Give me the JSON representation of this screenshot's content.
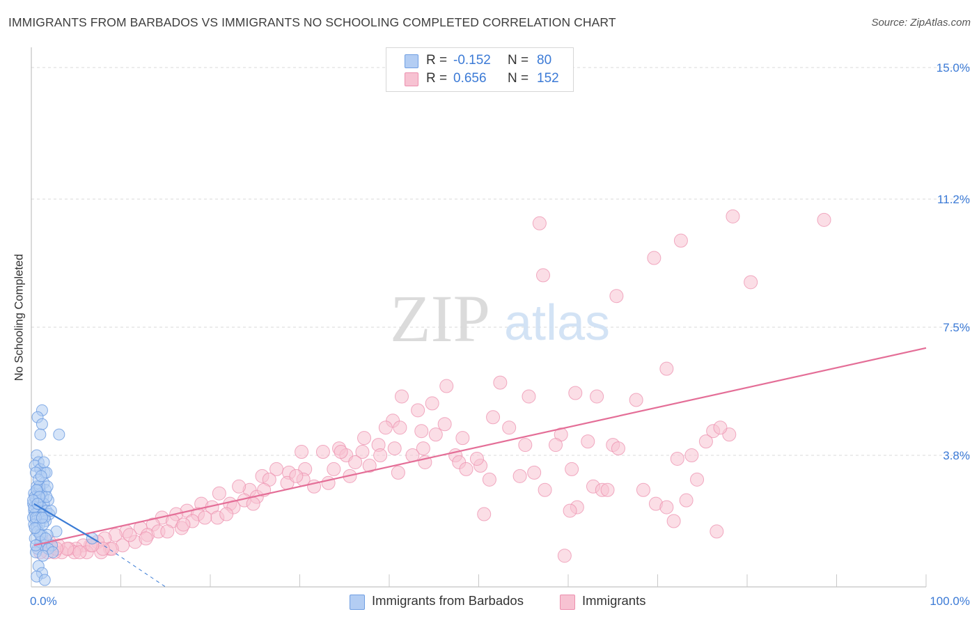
{
  "title": "IMMIGRANTS FROM BARBADOS VS IMMIGRANTS NO SCHOOLING COMPLETED CORRELATION CHART",
  "source": "Source: ZipAtlas.com",
  "watermark": {
    "zip": "ZIP",
    "atlas": "atlas"
  },
  "colors": {
    "blue_fill": "#b3cdf3",
    "blue_stroke": "#6f9ee2",
    "blue_line": "#3a7bd5",
    "pink_fill": "#f7c2d2",
    "pink_stroke": "#ec8fae",
    "pink_line": "#e46e97",
    "tick_label": "#3b7ad6",
    "grid": "#d9d9d9"
  },
  "legend": {
    "rows": [
      {
        "series": "blue",
        "r_label": "R =",
        "r_value": "-0.152",
        "n_label": "N =",
        "n_value": "80"
      },
      {
        "series": "pink",
        "r_label": "R =",
        "r_value": "0.656",
        "n_label": "N =",
        "n_value": "152"
      }
    ]
  },
  "chart_data": {
    "type": "scatter",
    "title": "IMMIGRANTS FROM BARBADOS VS IMMIGRANTS NO SCHOOLING COMPLETED CORRELATION CHART",
    "xlabel": "",
    "ylabel": "No Schooling Completed",
    "xlim": [
      0,
      100
    ],
    "ylim": [
      0,
      15.0
    ],
    "x_tick_labels": [
      "0.0%",
      "100.0%"
    ],
    "y_ticks": [
      3.8,
      7.5,
      11.2,
      15.0
    ],
    "y_tick_labels": [
      "3.8%",
      "7.5%",
      "11.2%",
      "15.0%"
    ],
    "grid": true,
    "legend_position": "top-center",
    "series": [
      {
        "name": "Immigrants from Barbados",
        "color": "blue",
        "R": -0.152,
        "N": 80,
        "trend": {
          "x": [
            0.3,
            7.5
          ],
          "y": [
            2.4,
            1.3
          ]
        },
        "trend_extension": {
          "x": [
            7.5,
            15.0
          ],
          "y": [
            1.3,
            0.0
          ]
        },
        "points": [
          [
            1.2,
            5.1
          ],
          [
            0.7,
            4.9
          ],
          [
            1.2,
            4.7
          ],
          [
            3.1,
            4.4
          ],
          [
            1.0,
            4.4
          ],
          [
            0.6,
            3.8
          ],
          [
            0.8,
            3.6
          ],
          [
            0.4,
            3.5
          ],
          [
            1.0,
            3.4
          ],
          [
            1.5,
            3.3
          ],
          [
            1.7,
            3.3
          ],
          [
            0.5,
            3.3
          ],
          [
            1.4,
            3.0
          ],
          [
            0.6,
            2.9
          ],
          [
            0.9,
            2.8
          ],
          [
            1.6,
            2.8
          ],
          [
            0.3,
            2.7
          ],
          [
            0.8,
            2.6
          ],
          [
            1.3,
            2.6
          ],
          [
            0.5,
            2.5
          ],
          [
            1.9,
            2.5
          ],
          [
            0.2,
            2.4
          ],
          [
            0.9,
            2.4
          ],
          [
            1.4,
            2.4
          ],
          [
            0.6,
            2.3
          ],
          [
            1.1,
            2.3
          ],
          [
            0.3,
            2.2
          ],
          [
            0.8,
            2.2
          ],
          [
            1.7,
            2.2
          ],
          [
            0.4,
            2.1
          ],
          [
            1.3,
            2.1
          ],
          [
            0.2,
            2.0
          ],
          [
            0.7,
            2.0
          ],
          [
            1.0,
            2.0
          ],
          [
            2.0,
            2.1
          ],
          [
            0.5,
            1.9
          ],
          [
            1.6,
            1.9
          ],
          [
            0.3,
            1.8
          ],
          [
            0.9,
            1.8
          ],
          [
            0.6,
            1.7
          ],
          [
            2.8,
            1.6
          ],
          [
            1.2,
            1.5
          ],
          [
            1.8,
            1.5
          ],
          [
            0.4,
            1.4
          ],
          [
            1.0,
            1.3
          ],
          [
            6.8,
            1.4
          ],
          [
            1.5,
            1.2
          ],
          [
            2.3,
            1.2
          ],
          [
            0.7,
            1.1
          ],
          [
            1.9,
            1.1
          ],
          [
            0.5,
            1.0
          ],
          [
            2.4,
            1.0
          ],
          [
            1.3,
            0.9
          ],
          [
            0.8,
            0.6
          ],
          [
            1.2,
            0.4
          ],
          [
            0.6,
            0.3
          ],
          [
            1.5,
            0.2
          ],
          [
            0.4,
            2.6
          ],
          [
            1.1,
            2.7
          ],
          [
            0.9,
            2.9
          ],
          [
            1.7,
            2.6
          ],
          [
            0.3,
            2.3
          ],
          [
            1.5,
            2.0
          ],
          [
            0.7,
            1.6
          ],
          [
            1.4,
            3.6
          ],
          [
            0.8,
            3.1
          ],
          [
            1.8,
            2.9
          ],
          [
            0.5,
            2.0
          ],
          [
            1.0,
            1.5
          ],
          [
            0.6,
            2.8
          ],
          [
            1.3,
            1.8
          ],
          [
            0.4,
            1.7
          ],
          [
            2.2,
            2.2
          ],
          [
            0.9,
            2.6
          ],
          [
            1.6,
            1.4
          ],
          [
            0.2,
            2.5
          ],
          [
            1.1,
            3.2
          ],
          [
            0.7,
            2.4
          ],
          [
            1.2,
            2.0
          ],
          [
            0.5,
            1.2
          ]
        ]
      },
      {
        "name": "Immigrants",
        "color": "pink",
        "R": 0.656,
        "N": 152,
        "trend": {
          "x": [
            0.3,
            100
          ],
          "y": [
            1.2,
            6.9
          ]
        },
        "points": [
          [
            78.4,
            10.7
          ],
          [
            88.6,
            10.6
          ],
          [
            56.8,
            10.5
          ],
          [
            72.6,
            10.0
          ],
          [
            69.6,
            9.5
          ],
          [
            57.2,
            9.0
          ],
          [
            80.4,
            8.8
          ],
          [
            65.4,
            8.4
          ],
          [
            71.0,
            6.3
          ],
          [
            52.4,
            5.9
          ],
          [
            46.4,
            5.8
          ],
          [
            41.4,
            5.5
          ],
          [
            60.8,
            5.6
          ],
          [
            63.2,
            5.5
          ],
          [
            55.6,
            5.5
          ],
          [
            67.6,
            5.4
          ],
          [
            44.8,
            5.3
          ],
          [
            43.2,
            5.1
          ],
          [
            40.4,
            4.8
          ],
          [
            51.6,
            4.9
          ],
          [
            46.2,
            4.7
          ],
          [
            39.6,
            4.6
          ],
          [
            41.2,
            4.6
          ],
          [
            43.6,
            4.5
          ],
          [
            76.2,
            4.5
          ],
          [
            78.0,
            4.4
          ],
          [
            59.2,
            4.4
          ],
          [
            37.2,
            4.3
          ],
          [
            48.2,
            4.3
          ],
          [
            62.2,
            4.2
          ],
          [
            65.0,
            4.1
          ],
          [
            55.2,
            4.1
          ],
          [
            58.6,
            4.1
          ],
          [
            43.8,
            4.0
          ],
          [
            40.6,
            4.0
          ],
          [
            38.8,
            4.1
          ],
          [
            34.4,
            4.0
          ],
          [
            37.0,
            3.9
          ],
          [
            30.2,
            3.9
          ],
          [
            32.6,
            3.9
          ],
          [
            35.2,
            3.8
          ],
          [
            39.0,
            3.8
          ],
          [
            42.6,
            3.8
          ],
          [
            47.4,
            3.8
          ],
          [
            65.6,
            4.0
          ],
          [
            72.2,
            3.7
          ],
          [
            73.8,
            3.8
          ],
          [
            47.8,
            3.6
          ],
          [
            50.2,
            3.5
          ],
          [
            37.8,
            3.5
          ],
          [
            33.8,
            3.4
          ],
          [
            30.6,
            3.4
          ],
          [
            27.4,
            3.4
          ],
          [
            28.8,
            3.3
          ],
          [
            25.8,
            3.2
          ],
          [
            35.6,
            3.2
          ],
          [
            41.0,
            3.3
          ],
          [
            60.4,
            3.4
          ],
          [
            51.2,
            3.1
          ],
          [
            54.6,
            3.2
          ],
          [
            56.2,
            3.3
          ],
          [
            48.6,
            3.4
          ],
          [
            28.6,
            3.0
          ],
          [
            26.6,
            3.1
          ],
          [
            30.4,
            3.1
          ],
          [
            31.6,
            2.9
          ],
          [
            24.4,
            2.8
          ],
          [
            21.0,
            2.7
          ],
          [
            23.2,
            2.9
          ],
          [
            62.8,
            2.9
          ],
          [
            74.4,
            3.1
          ],
          [
            68.4,
            2.8
          ],
          [
            57.4,
            2.8
          ],
          [
            63.8,
            2.8
          ],
          [
            64.4,
            2.8
          ],
          [
            25.2,
            2.6
          ],
          [
            23.8,
            2.5
          ],
          [
            22.2,
            2.4
          ],
          [
            19.0,
            2.4
          ],
          [
            20.2,
            2.3
          ],
          [
            17.4,
            2.2
          ],
          [
            16.2,
            2.1
          ],
          [
            14.6,
            2.0
          ],
          [
            69.8,
            2.4
          ],
          [
            71.0,
            2.3
          ],
          [
            73.2,
            2.5
          ],
          [
            61.0,
            2.3
          ],
          [
            60.2,
            2.2
          ],
          [
            18.6,
            2.1
          ],
          [
            15.8,
            1.9
          ],
          [
            13.6,
            1.8
          ],
          [
            12.2,
            1.7
          ],
          [
            10.6,
            1.6
          ],
          [
            9.4,
            1.5
          ],
          [
            8.2,
            1.4
          ],
          [
            7.4,
            1.3
          ],
          [
            6.6,
            1.2
          ],
          [
            5.8,
            1.2
          ],
          [
            5.0,
            1.1
          ],
          [
            4.2,
            1.1
          ],
          [
            3.4,
            1.0
          ],
          [
            2.6,
            1.0
          ],
          [
            1.8,
            1.0
          ],
          [
            1.0,
            1.0
          ],
          [
            8.8,
            1.1
          ],
          [
            6.2,
            1.0
          ],
          [
            4.8,
            1.0
          ],
          [
            7.8,
            1.0
          ],
          [
            11.6,
            1.3
          ],
          [
            13.0,
            1.5
          ],
          [
            14.2,
            1.6
          ],
          [
            15.2,
            1.6
          ],
          [
            16.8,
            1.7
          ],
          [
            10.2,
            1.2
          ],
          [
            9.0,
            1.1
          ],
          [
            12.8,
            1.4
          ],
          [
            11.0,
            1.5
          ],
          [
            20.8,
            2.0
          ],
          [
            18.0,
            1.9
          ],
          [
            76.6,
            1.6
          ],
          [
            71.8,
            1.9
          ],
          [
            50.6,
            2.1
          ],
          [
            59.6,
            0.9
          ],
          [
            77.0,
            4.6
          ],
          [
            75.4,
            4.2
          ],
          [
            34.6,
            3.9
          ],
          [
            45.2,
            4.4
          ],
          [
            53.4,
            4.6
          ],
          [
            49.8,
            3.7
          ],
          [
            36.2,
            3.6
          ],
          [
            44.0,
            3.6
          ],
          [
            26.0,
            2.8
          ],
          [
            22.6,
            2.3
          ],
          [
            19.4,
            2.0
          ],
          [
            17.0,
            1.8
          ],
          [
            8.0,
            1.1
          ],
          [
            2.0,
            1.3
          ],
          [
            3.0,
            1.2
          ],
          [
            4.0,
            1.1
          ],
          [
            5.4,
            1.0
          ],
          [
            6.8,
            1.2
          ],
          [
            1.2,
            1.3
          ],
          [
            2.8,
            1.1
          ],
          [
            33.2,
            3.0
          ],
          [
            29.6,
            3.2
          ],
          [
            24.8,
            2.4
          ],
          [
            21.8,
            2.1
          ]
        ]
      }
    ]
  },
  "bottom_legend": [
    {
      "series": "blue",
      "label": "Immigrants from Barbados"
    },
    {
      "series": "pink",
      "label": "Immigrants"
    }
  ]
}
